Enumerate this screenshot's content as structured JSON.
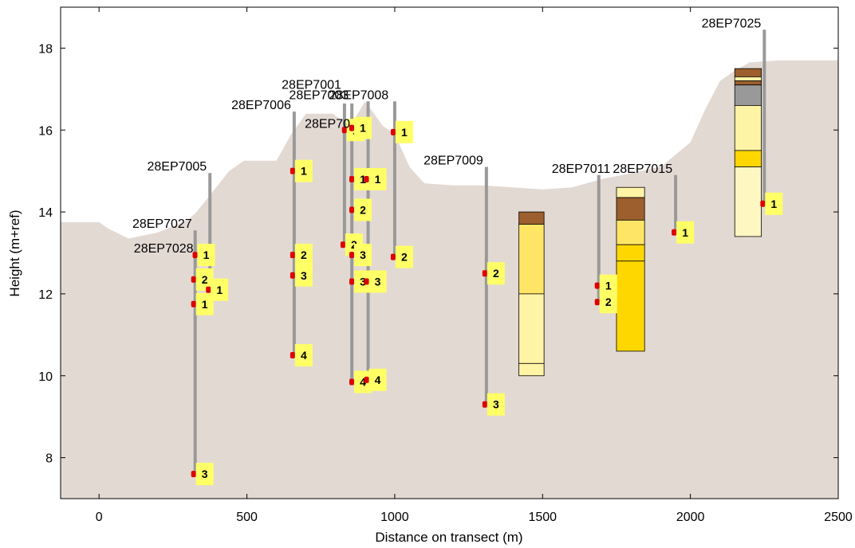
{
  "chart_data": {
    "type": "cross-section",
    "xlabel": "Distance on transect (m)",
    "ylabel": "Height (m+ref)",
    "xlim": [
      -130,
      2500
    ],
    "ylim": [
      7.0,
      19.0
    ],
    "xticks": [
      "0",
      "500",
      "1000",
      "1500",
      "2000",
      "2500"
    ],
    "xtick_values": [
      0,
      500,
      1000,
      1500,
      2000,
      2500
    ],
    "yticks": [
      "8",
      "10",
      "12",
      "14",
      "16",
      "18"
    ],
    "ytick_values": [
      8,
      10,
      12,
      14,
      16,
      18
    ],
    "grid": false,
    "colors": {
      "terrain": "#e3d9d3",
      "core_line": "#999999",
      "sample_marker": "#dd0000",
      "badge": "#ffff66",
      "brown": "#9c5f2d",
      "light_yellow": "#fff3a6",
      "pale_yellow": "#fff7c2",
      "yellow": "#ffe566",
      "gold": "#ffd700",
      "grey": "#999999"
    },
    "terrain_profile": [
      {
        "x": -130,
        "y": 13.75
      },
      {
        "x": 0,
        "y": 13.75
      },
      {
        "x": 30,
        "y": 13.6
      },
      {
        "x": 100,
        "y": 13.35
      },
      {
        "x": 200,
        "y": 13.5
      },
      {
        "x": 300,
        "y": 13.8
      },
      {
        "x": 330,
        "y": 14.0
      },
      {
        "x": 440,
        "y": 15.0
      },
      {
        "x": 490,
        "y": 15.25
      },
      {
        "x": 600,
        "y": 15.25
      },
      {
        "x": 650,
        "y": 15.9
      },
      {
        "x": 700,
        "y": 16.4
      },
      {
        "x": 790,
        "y": 16.4
      },
      {
        "x": 850,
        "y": 16.1
      },
      {
        "x": 900,
        "y": 16.7
      },
      {
        "x": 960,
        "y": 16.1
      },
      {
        "x": 1000,
        "y": 15.9
      },
      {
        "x": 1050,
        "y": 15.1
      },
      {
        "x": 1100,
        "y": 14.7
      },
      {
        "x": 1200,
        "y": 14.65
      },
      {
        "x": 1300,
        "y": 14.65
      },
      {
        "x": 1400,
        "y": 14.6
      },
      {
        "x": 1500,
        "y": 14.55
      },
      {
        "x": 1600,
        "y": 14.6
      },
      {
        "x": 1700,
        "y": 14.8
      },
      {
        "x": 1800,
        "y": 14.95
      },
      {
        "x": 1900,
        "y": 15.1
      },
      {
        "x": 2000,
        "y": 15.7
      },
      {
        "x": 2050,
        "y": 16.5
      },
      {
        "x": 2100,
        "y": 17.2
      },
      {
        "x": 2150,
        "y": 17.45
      },
      {
        "x": 2200,
        "y": 17.65
      },
      {
        "x": 2300,
        "y": 17.7
      },
      {
        "x": 2500,
        "y": 17.7
      }
    ],
    "cores": [
      {
        "name": "28EP7027",
        "x": 325,
        "top": 13.55,
        "bottom": 7.6
      },
      {
        "name": "28EP7028",
        "x": 330,
        "top": 12.95,
        "bottom": 12.95
      },
      {
        "name": "28EP7005",
        "x": 375,
        "top": 14.95,
        "bottom": 12.1
      },
      {
        "name": "28EP7006",
        "x": 660,
        "top": 16.45,
        "bottom": 10.5
      },
      {
        "name": "28EP7001",
        "x": 830,
        "top": 16.65,
        "bottom": 13.2
      },
      {
        "name": "28EP7003",
        "x": 855,
        "top": 16.65,
        "bottom": 9.85
      },
      {
        "name": "28EP7008",
        "x": 910,
        "top": 16.7,
        "bottom": 9.9
      },
      {
        "name": "28EP70",
        "x": 860,
        "top": 16.0,
        "bottom": 16.0
      },
      {
        "name": "28EP7009",
        "x": 1310,
        "top": 15.1,
        "bottom": 9.3
      },
      {
        "name": "28EP7011",
        "x": 1690,
        "top": 14.9,
        "bottom": 11.8
      },
      {
        "name": "28EP7015",
        "x": 1950,
        "top": 14.9,
        "bottom": 13.5
      },
      {
        "name": "28EP7025",
        "x": 2250,
        "top": 18.45,
        "bottom": 14.2
      },
      {
        "name": "",
        "x": 1000,
        "top": 16.7,
        "bottom": 12.9
      }
    ],
    "core_labels": [
      {
        "text": "28EP7027",
        "x": 325,
        "y": 13.55
      },
      {
        "text": "28EP7028",
        "x": 330,
        "y": 12.95
      },
      {
        "text": "28EP7005",
        "x": 375,
        "y": 14.95
      },
      {
        "text": "28EP7006",
        "x": 660,
        "y": 16.45
      },
      {
        "text": "28EP7001",
        "x": 830,
        "y": 16.95
      },
      {
        "text": "28EP7003",
        "x": 855,
        "y": 16.7
      },
      {
        "text": "28EP7008",
        "x": 990,
        "y": 16.7
      },
      {
        "text": "28EP70",
        "x": 860,
        "y": 16.0
      },
      {
        "text": "28EP7009",
        "x": 1310,
        "y": 15.1
      },
      {
        "text": "28EP7011",
        "x": 1740,
        "y": 14.9
      },
      {
        "text": "28EP7015",
        "x": 1950,
        "y": 14.9
      },
      {
        "text": "28EP7025",
        "x": 2250,
        "y": 18.45
      }
    ],
    "samples": [
      {
        "label": "3",
        "x": 325,
        "y": 7.6
      },
      {
        "label": "1",
        "x": 325,
        "y": 11.75
      },
      {
        "label": "2",
        "x": 325,
        "y": 12.35
      },
      {
        "label": "1",
        "x": 330,
        "y": 12.95
      },
      {
        "label": "1",
        "x": 375,
        "y": 12.1
      },
      {
        "label": "1",
        "x": 660,
        "y": 15.0
      },
      {
        "label": "2",
        "x": 660,
        "y": 12.95
      },
      {
        "label": "3",
        "x": 660,
        "y": 12.45
      },
      {
        "label": "4",
        "x": 660,
        "y": 10.5
      },
      {
        "label": "1",
        "x": 835,
        "y": 16.0
      },
      {
        "label": "1",
        "x": 860,
        "y": 16.05
      },
      {
        "label": "2",
        "x": 830,
        "y": 13.2
      },
      {
        "label": "1",
        "x": 860,
        "y": 14.8
      },
      {
        "label": "1",
        "x": 910,
        "y": 14.8
      },
      {
        "label": "2",
        "x": 860,
        "y": 14.05
      },
      {
        "label": "3",
        "x": 860,
        "y": 12.95
      },
      {
        "label": "3",
        "x": 860,
        "y": 12.3
      },
      {
        "label": "3",
        "x": 910,
        "y": 12.3
      },
      {
        "label": "4",
        "x": 860,
        "y": 9.85
      },
      {
        "label": "4",
        "x": 910,
        "y": 9.9
      },
      {
        "label": "1",
        "x": 1000,
        "y": 15.95
      },
      {
        "label": "2",
        "x": 1000,
        "y": 12.9
      },
      {
        "label": "2",
        "x": 1310,
        "y": 12.5
      },
      {
        "label": "3",
        "x": 1310,
        "y": 9.3
      },
      {
        "label": "1",
        "x": 1690,
        "y": 12.2
      },
      {
        "label": "2",
        "x": 1690,
        "y": 11.8
      },
      {
        "label": "1",
        "x": 1950,
        "y": 13.5
      },
      {
        "label": "1",
        "x": 2250,
        "y": 14.2
      }
    ],
    "columns": [
      {
        "x0": 1420,
        "x1": 1505,
        "layers": [
          {
            "top": 14.0,
            "bottom": 13.7,
            "color": "brown"
          },
          {
            "top": 13.7,
            "bottom": 12.0,
            "color": "yellow"
          },
          {
            "top": 12.0,
            "bottom": 10.3,
            "color": "light_yellow"
          },
          {
            "top": 10.3,
            "bottom": 10.0,
            "color": "light_yellow"
          }
        ]
      },
      {
        "x0": 1750,
        "x1": 1845,
        "layers": [
          {
            "top": 14.6,
            "bottom": 14.35,
            "color": "light_yellow"
          },
          {
            "top": 14.35,
            "bottom": 13.8,
            "color": "brown"
          },
          {
            "top": 13.8,
            "bottom": 13.2,
            "color": "yellow"
          },
          {
            "top": 13.2,
            "bottom": 12.8,
            "color": "gold"
          },
          {
            "top": 12.8,
            "bottom": 10.6,
            "color": "gold"
          }
        ]
      },
      {
        "x0": 2150,
        "x1": 2240,
        "layers": [
          {
            "top": 17.5,
            "bottom": 17.3,
            "color": "brown"
          },
          {
            "top": 17.3,
            "bottom": 17.2,
            "color": "light_yellow"
          },
          {
            "top": 17.2,
            "bottom": 17.1,
            "color": "brown"
          },
          {
            "top": 17.1,
            "bottom": 16.6,
            "color": "grey"
          },
          {
            "top": 16.6,
            "bottom": 15.5,
            "color": "light_yellow"
          },
          {
            "top": 15.5,
            "bottom": 15.1,
            "color": "gold"
          },
          {
            "top": 15.1,
            "bottom": 13.4,
            "color": "pale_yellow"
          }
        ]
      }
    ]
  }
}
